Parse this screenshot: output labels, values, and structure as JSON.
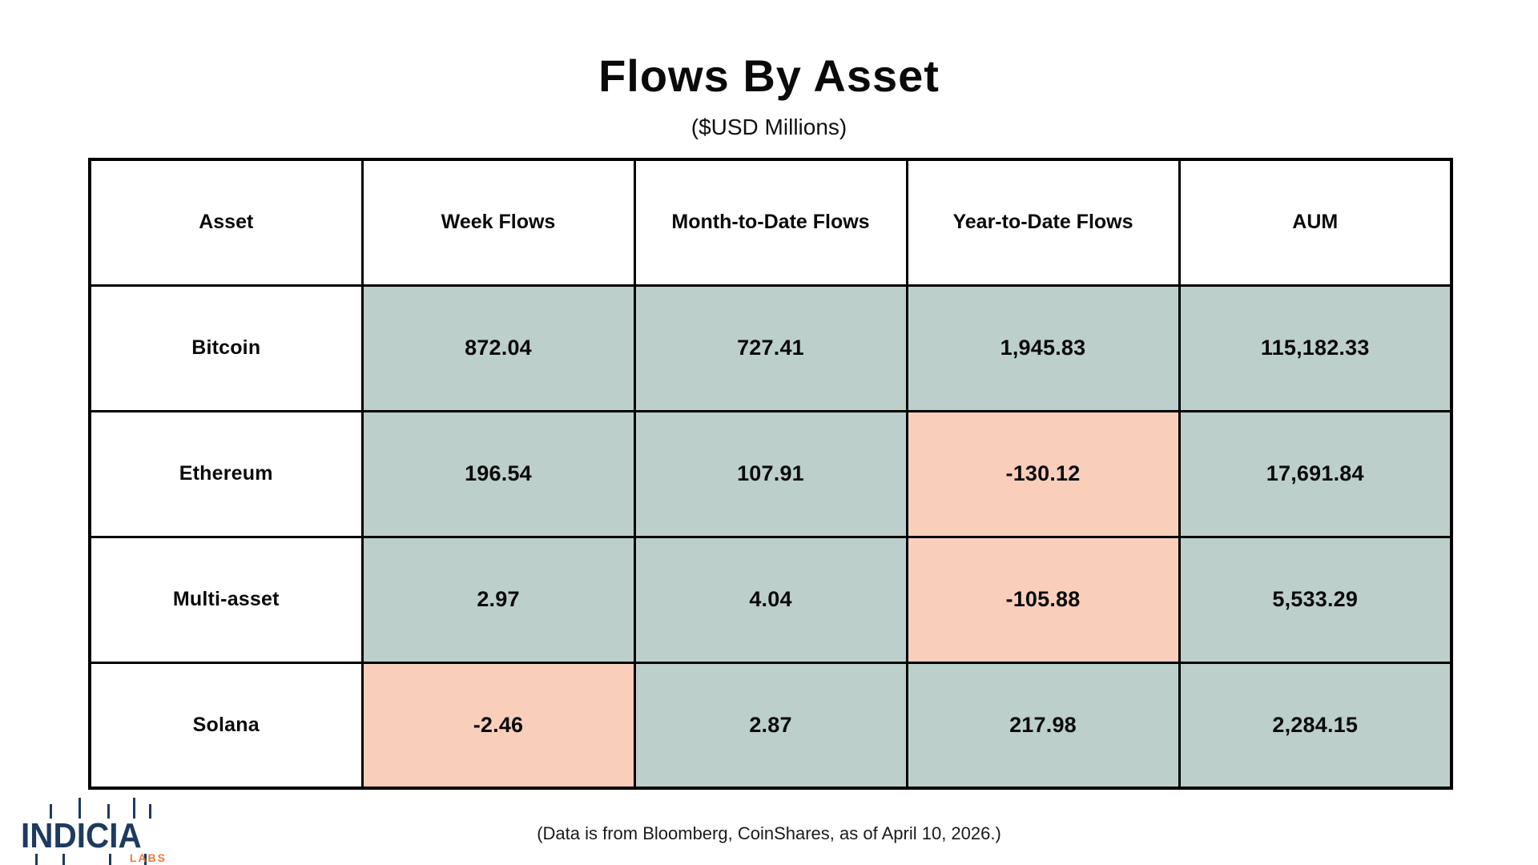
{
  "page": {
    "title": "Flows By Asset",
    "subtitle": "($USD Millions)",
    "footnote": "(Data is from Bloomberg, CoinShares, as of April 10, 2026.)"
  },
  "logo": {
    "name": "INDICIA",
    "sub": "LABS"
  },
  "colors": {
    "positive_bg": "#bccfcb",
    "negative_bg": "#f9cfbc",
    "border": "#000000",
    "logo_navy": "#1e3a5e",
    "logo_orange": "#f0793a"
  },
  "table": {
    "header": [
      "Asset",
      "Week Flows",
      "Month-to-Date Flows",
      "Year-to-Date Flows",
      "AUM"
    ],
    "rows": [
      {
        "cells": [
          "Bitcoin",
          "872.04",
          "727.41",
          "1,945.83",
          "115,182.33"
        ]
      },
      {
        "cells": [
          "Ethereum",
          "196.54",
          "107.91",
          "-130.12",
          "17,691.84"
        ]
      },
      {
        "cells": [
          "Multi-asset",
          "2.97",
          "4.04",
          "-105.88",
          "5,533.29"
        ]
      },
      {
        "cells": [
          "Solana",
          "-2.46",
          "2.87",
          "217.98",
          "2,284.15"
        ]
      }
    ]
  },
  "chart_data": {
    "type": "table",
    "title": "Flows By Asset",
    "units": "$USD Millions",
    "columns": [
      "Asset",
      "Week Flows",
      "Month-to-Date Flows",
      "Year-to-Date Flows",
      "AUM"
    ],
    "rows": [
      {
        "asset": "Bitcoin",
        "week_flows": 872.04,
        "month_to_date_flows": 727.41,
        "year_to_date_flows": 1945.83,
        "aum": 115182.33
      },
      {
        "asset": "Ethereum",
        "week_flows": 196.54,
        "month_to_date_flows": 107.91,
        "year_to_date_flows": -130.12,
        "aum": 17691.84
      },
      {
        "asset": "Multi-asset",
        "week_flows": 2.97,
        "month_to_date_flows": 4.04,
        "year_to_date_flows": -105.88,
        "aum": 5533.29
      },
      {
        "asset": "Solana",
        "week_flows": -2.46,
        "month_to_date_flows": 2.87,
        "year_to_date_flows": 217.98,
        "aum": 2284.15
      }
    ],
    "source_note": "(Data is from Bloomberg, CoinShares, as of April 10, 2026.)",
    "color_rule": "negative values shaded salmon, non-negative values shaded green; asset column white"
  }
}
